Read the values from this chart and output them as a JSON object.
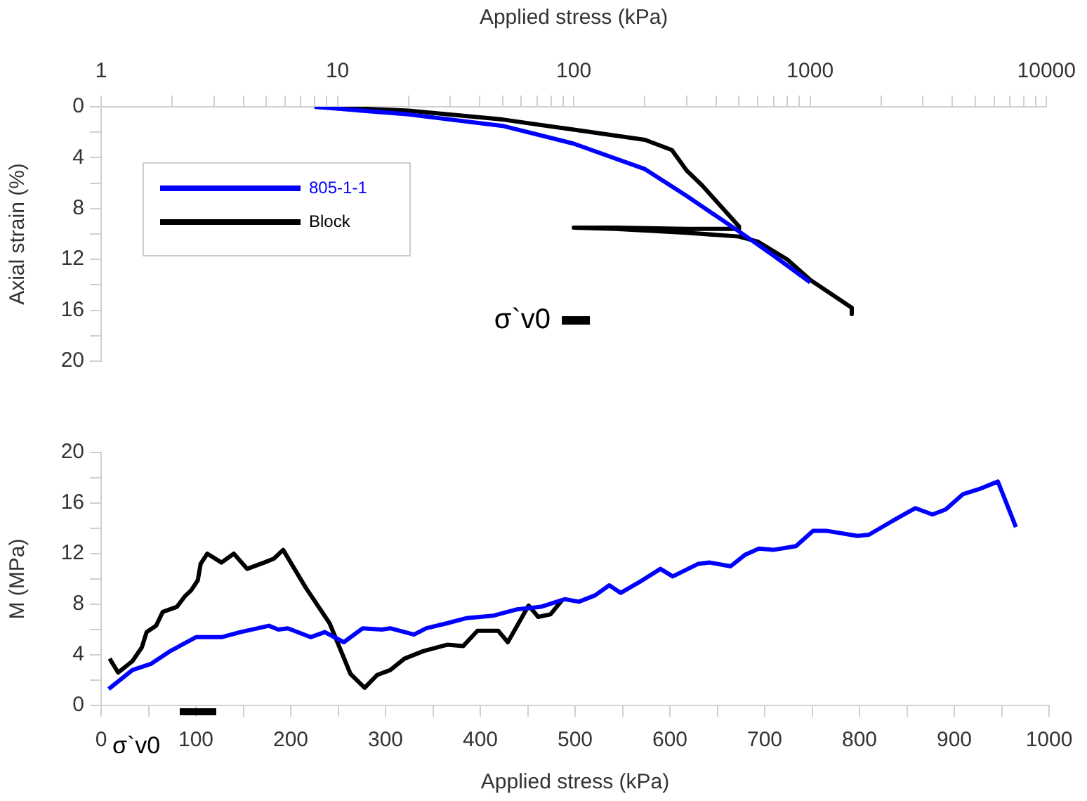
{
  "chart_data": [
    {
      "type": "line",
      "xlabel": "Applied stress (kPa)",
      "ylabel": "Axial strain (%)",
      "log": "x",
      "xlim": [
        1,
        10000
      ],
      "xticks": [
        1,
        {
          "value": 2,
          "label": null
        },
        {
          "value": 3,
          "label": null
        },
        {
          "value": 4,
          "label": null
        },
        {
          "value": 5,
          "label": null
        },
        {
          "value": 6,
          "label": null
        },
        {
          "value": 7,
          "label": null
        },
        {
          "value": 8,
          "label": null
        },
        {
          "value": 9,
          "label": null
        },
        10,
        {
          "value": 20,
          "label": null
        },
        {
          "value": 30,
          "label": null
        },
        {
          "value": 40,
          "label": null
        },
        {
          "value": 50,
          "label": null
        },
        {
          "value": 60,
          "label": null
        },
        {
          "value": 70,
          "label": null
        },
        {
          "value": 80,
          "label": null
        },
        {
          "value": 90,
          "label": null
        },
        100,
        {
          "value": 200,
          "label": null
        },
        {
          "value": 300,
          "label": null
        },
        {
          "value": 400,
          "label": null
        },
        {
          "value": 500,
          "label": null
        },
        {
          "value": 600,
          "label": null
        },
        {
          "value": 700,
          "label": null
        },
        {
          "value": 800,
          "label": null
        },
        {
          "value": 900,
          "label": null
        },
        1000,
        {
          "value": 2000,
          "label": null
        },
        {
          "value": 3000,
          "label": null
        },
        {
          "value": 4000,
          "label": null
        },
        {
          "value": 5000,
          "label": null
        },
        {
          "value": 6000,
          "label": null
        },
        {
          "value": 7000,
          "label": null
        },
        {
          "value": 8000,
          "label": null
        },
        {
          "value": 9000,
          "label": null
        },
        10000
      ],
      "ylim": [
        20,
        0
      ],
      "yticks": [
        0,
        {
          "value": 2,
          "label": null
        },
        4,
        {
          "value": 6,
          "label": null
        },
        8,
        {
          "value": 10,
          "label": null
        },
        12,
        {
          "value": 14,
          "label": null
        },
        16,
        {
          "value": 18,
          "label": null
        },
        20
      ],
      "grid": false,
      "legend": "top left",
      "marker": "none",
      "line_style": "solid",
      "series": [
        {
          "name": "805-1-1",
          "color": "#0000ff",
          "x": [
            8,
            20,
            50,
            100,
            200,
            300,
            500,
            700,
            1000
          ],
          "values": [
            0,
            0.6,
            1.5,
            2.9,
            4.9,
            7.0,
            9.8,
            11.7,
            13.8
          ]
        },
        {
          "name": "Block",
          "color": "#000000",
          "x": [
            8,
            20,
            50,
            100,
            200,
            260,
            300,
            350,
            500,
            500,
            300,
            150,
            100,
            150,
            300,
            500,
            600,
            800,
            1000,
            1500,
            1500
          ],
          "values": [
            0,
            0.3,
            1.0,
            1.8,
            2.6,
            3.4,
            5.0,
            6.2,
            9.4,
            9.6,
            9.6,
            9.5,
            9.5,
            9.6,
            9.9,
            10.2,
            10.6,
            12.0,
            13.6,
            15.8,
            16.3
          ]
        },
        {
          "color": "#000000",
          "x": [
            89,
            117
          ],
          "values": [
            16.8,
            16.8
          ]
        }
      ],
      "annotations": [
        {
          "text": "σ`v0",
          "x": 89,
          "y": 16.8
        }
      ]
    },
    {
      "type": "line",
      "xlabel": "Applied stress (kPa)",
      "ylabel": "M (MPa)",
      "xlim": [
        0,
        1000
      ],
      "xticks": [
        0,
        {
          "value": 50,
          "label": null
        },
        100,
        {
          "value": 150,
          "label": null
        },
        200,
        {
          "value": 250,
          "label": null
        },
        300,
        {
          "value": 350,
          "label": null
        },
        400,
        {
          "value": 450,
          "label": null
        },
        500,
        {
          "value": 550,
          "label": null
        },
        600,
        {
          "value": 650,
          "label": null
        },
        700,
        {
          "value": 750,
          "label": null
        },
        800,
        {
          "value": 850,
          "label": null
        },
        900,
        {
          "value": 950,
          "label": null
        },
        1000
      ],
      "ylim": [
        0,
        20
      ],
      "yticks": [
        0,
        {
          "value": 2,
          "label": null
        },
        4,
        {
          "value": 6,
          "label": null
        },
        8,
        {
          "value": 10,
          "label": null
        },
        12,
        {
          "value": 14,
          "label": null
        },
        16,
        {
          "value": 18,
          "label": null
        },
        20
      ],
      "grid": false,
      "marker": "none",
      "line_style": "solid",
      "series": [
        {
          "color": "#0000ff",
          "x": [
            8,
            33,
            53,
            73,
            100,
            127,
            147,
            177,
            187,
            197,
            221,
            236,
            256,
            276,
            296,
            305,
            330,
            343,
            365,
            385,
            414,
            439,
            464,
            489,
            504,
            521,
            536,
            548,
            571,
            590,
            603,
            630,
            642,
            664,
            679,
            694,
            709,
            733,
            751,
            766,
            798,
            810,
            842,
            859,
            877,
            891,
            909,
            926,
            946,
            965
          ],
          "values": [
            1.3,
            2.8,
            3.3,
            4.3,
            5.4,
            5.4,
            5.8,
            6.3,
            6.0,
            6.1,
            5.4,
            5.8,
            5.0,
            6.1,
            6.0,
            6.1,
            5.6,
            6.1,
            6.5,
            6.9,
            7.1,
            7.6,
            7.8,
            8.4,
            8.2,
            8.7,
            9.5,
            8.9,
            9.9,
            10.8,
            10.2,
            11.2,
            11.3,
            11.0,
            11.9,
            12.4,
            12.3,
            12.6,
            13.8,
            13.8,
            13.4,
            13.5,
            14.9,
            15.6,
            15.1,
            15.5,
            16.7,
            17.1,
            17.7,
            14.1
          ]
        },
        {
          "color": "#000000",
          "x": [
            9,
            18,
            33,
            43,
            48,
            58,
            65,
            80,
            88,
            95,
            102,
            105,
            112,
            127,
            140,
            154,
            172,
            182,
            192,
            216,
            241,
            263,
            278,
            291,
            305,
            320,
            340,
            365,
            382,
            397,
            419,
            429,
            451,
            461,
            474,
            486
          ],
          "values": [
            3.7,
            2.6,
            3.5,
            4.6,
            5.8,
            6.3,
            7.4,
            7.8,
            8.6,
            9.1,
            9.9,
            11.2,
            12.0,
            11.3,
            12.0,
            10.8,
            11.3,
            11.6,
            12.3,
            9.3,
            6.5,
            2.5,
            1.4,
            2.4,
            2.8,
            3.7,
            4.3,
            4.8,
            4.7,
            5.9,
            5.9,
            5.0,
            7.9,
            7.0,
            7.2,
            8.3
          ]
        }
      ],
      "annotations": [
        "σ`v0"
      ]
    }
  ]
}
